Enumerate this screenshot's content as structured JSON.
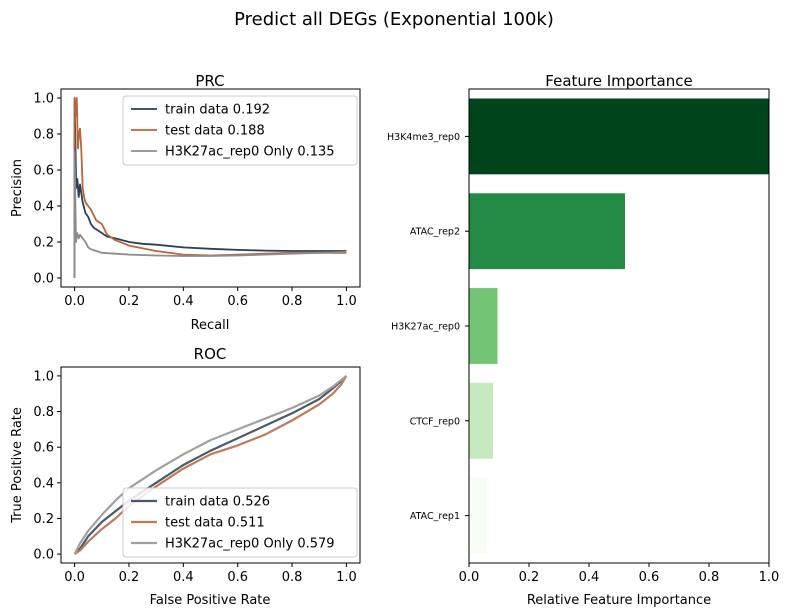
{
  "suptitle": "Predict all DEGs (Exponential 100k)",
  "chart_data": [
    {
      "type": "line",
      "title": "PRC",
      "xlabel": "Recall",
      "ylabel": "Precision",
      "xlim": [
        -0.05,
        1.05
      ],
      "ylim": [
        -0.05,
        1.05
      ],
      "xticks": [
        "0.0",
        "0.2",
        "0.4",
        "0.6",
        "0.8",
        "1.0"
      ],
      "yticks": [
        "0.0",
        "0.2",
        "0.4",
        "0.6",
        "0.8",
        "1.0"
      ],
      "legend_position": "top-right",
      "series": [
        {
          "name": "train data 0.192",
          "color": "#2b3f55",
          "x": [
            0.0,
            0.0,
            0.003,
            0.006,
            0.01,
            0.015,
            0.02,
            0.03,
            0.04,
            0.05,
            0.06,
            0.07,
            0.08,
            0.1,
            0.12,
            0.15,
            0.2,
            0.25,
            0.3,
            0.4,
            0.5,
            0.6,
            0.7,
            0.8,
            0.9,
            1.0
          ],
          "y": [
            0.0,
            1.0,
            0.75,
            0.5,
            0.55,
            0.45,
            0.52,
            0.42,
            0.36,
            0.34,
            0.3,
            0.28,
            0.27,
            0.25,
            0.23,
            0.22,
            0.2,
            0.19,
            0.185,
            0.17,
            0.162,
            0.156,
            0.152,
            0.15,
            0.15,
            0.15
          ]
        },
        {
          "name": "test data 0.188",
          "color": "#b8643c",
          "x": [
            0.0,
            0.0,
            0.004,
            0.008,
            0.012,
            0.016,
            0.02,
            0.025,
            0.03,
            0.035,
            0.04,
            0.05,
            0.06,
            0.08,
            0.1,
            0.12,
            0.15,
            0.2,
            0.3,
            0.4,
            0.5,
            0.6,
            0.7,
            0.8,
            0.9,
            1.0
          ],
          "y": [
            0.0,
            1.0,
            0.9,
            1.0,
            0.72,
            0.8,
            0.83,
            0.7,
            0.5,
            0.45,
            0.42,
            0.4,
            0.38,
            0.32,
            0.3,
            0.24,
            0.21,
            0.18,
            0.15,
            0.13,
            0.125,
            0.13,
            0.135,
            0.14,
            0.14,
            0.14
          ]
        },
        {
          "name": "H3K27ac_rep0 Only 0.135",
          "color": "#8c8c8c",
          "x": [
            0.0,
            0.0,
            0.005,
            0.01,
            0.015,
            0.02,
            0.03,
            0.04,
            0.05,
            0.06,
            0.08,
            0.1,
            0.15,
            0.2,
            0.3,
            0.4,
            0.5,
            0.6,
            0.7,
            0.8,
            0.9,
            1.0
          ],
          "y": [
            0.0,
            0.7,
            0.2,
            0.25,
            0.22,
            0.24,
            0.22,
            0.2,
            0.17,
            0.16,
            0.15,
            0.14,
            0.135,
            0.13,
            0.125,
            0.122,
            0.122,
            0.125,
            0.13,
            0.135,
            0.14,
            0.145
          ]
        }
      ]
    },
    {
      "type": "line",
      "title": "ROC",
      "xlabel": "False Positive Rate",
      "ylabel": "True Positive Rate",
      "xlim": [
        -0.05,
        1.05
      ],
      "ylim": [
        -0.05,
        1.05
      ],
      "xticks": [
        "0.0",
        "0.2",
        "0.4",
        "0.6",
        "0.8",
        "1.0"
      ],
      "yticks": [
        "0.0",
        "0.2",
        "0.4",
        "0.6",
        "0.8",
        "1.0"
      ],
      "legend_position": "bottom-right",
      "series": [
        {
          "name": "train data 0.526",
          "color": "#4a5a6a",
          "x": [
            0.0,
            0.02,
            0.05,
            0.1,
            0.15,
            0.2,
            0.3,
            0.4,
            0.5,
            0.6,
            0.7,
            0.8,
            0.9,
            0.95,
            0.98,
            1.0
          ],
          "y": [
            0.0,
            0.03,
            0.1,
            0.18,
            0.24,
            0.3,
            0.4,
            0.5,
            0.58,
            0.65,
            0.72,
            0.79,
            0.87,
            0.93,
            0.97,
            1.0
          ]
        },
        {
          "name": "test data 0.511",
          "color": "#c07a5a",
          "x": [
            0.0,
            0.02,
            0.05,
            0.1,
            0.15,
            0.2,
            0.3,
            0.4,
            0.5,
            0.6,
            0.7,
            0.8,
            0.9,
            0.95,
            0.98,
            1.0
          ],
          "y": [
            0.0,
            0.02,
            0.07,
            0.14,
            0.2,
            0.27,
            0.38,
            0.48,
            0.56,
            0.61,
            0.67,
            0.75,
            0.84,
            0.9,
            0.95,
            1.0
          ]
        },
        {
          "name": "H3K27ac_rep0 Only 0.579",
          "color": "#a0a0a0",
          "x": [
            0.0,
            0.02,
            0.05,
            0.1,
            0.15,
            0.2,
            0.3,
            0.4,
            0.5,
            0.6,
            0.7,
            0.8,
            0.9,
            0.95,
            1.0
          ],
          "y": [
            0.0,
            0.06,
            0.13,
            0.22,
            0.3,
            0.37,
            0.47,
            0.56,
            0.64,
            0.7,
            0.76,
            0.82,
            0.89,
            0.94,
            1.0
          ]
        }
      ]
    },
    {
      "type": "bar",
      "orientation": "horizontal",
      "title": "Feature Importance",
      "xlabel": "Relative Feature Importance",
      "ylabel": "",
      "xlim": [
        0,
        1
      ],
      "xticks": [
        "0.0",
        "0.2",
        "0.4",
        "0.6",
        "0.8",
        "1.0"
      ],
      "categories": [
        "H3K4me3_rep0",
        "ATAC_rep2",
        "H3K27ac_rep0",
        "CTCF_rep0",
        "ATAC_rep1"
      ],
      "values": [
        1.0,
        0.52,
        0.095,
        0.08,
        0.06
      ],
      "colors": [
        "#00441b",
        "#238b45",
        "#74c476",
        "#c7e9c0",
        "#f7fcf5"
      ]
    }
  ]
}
